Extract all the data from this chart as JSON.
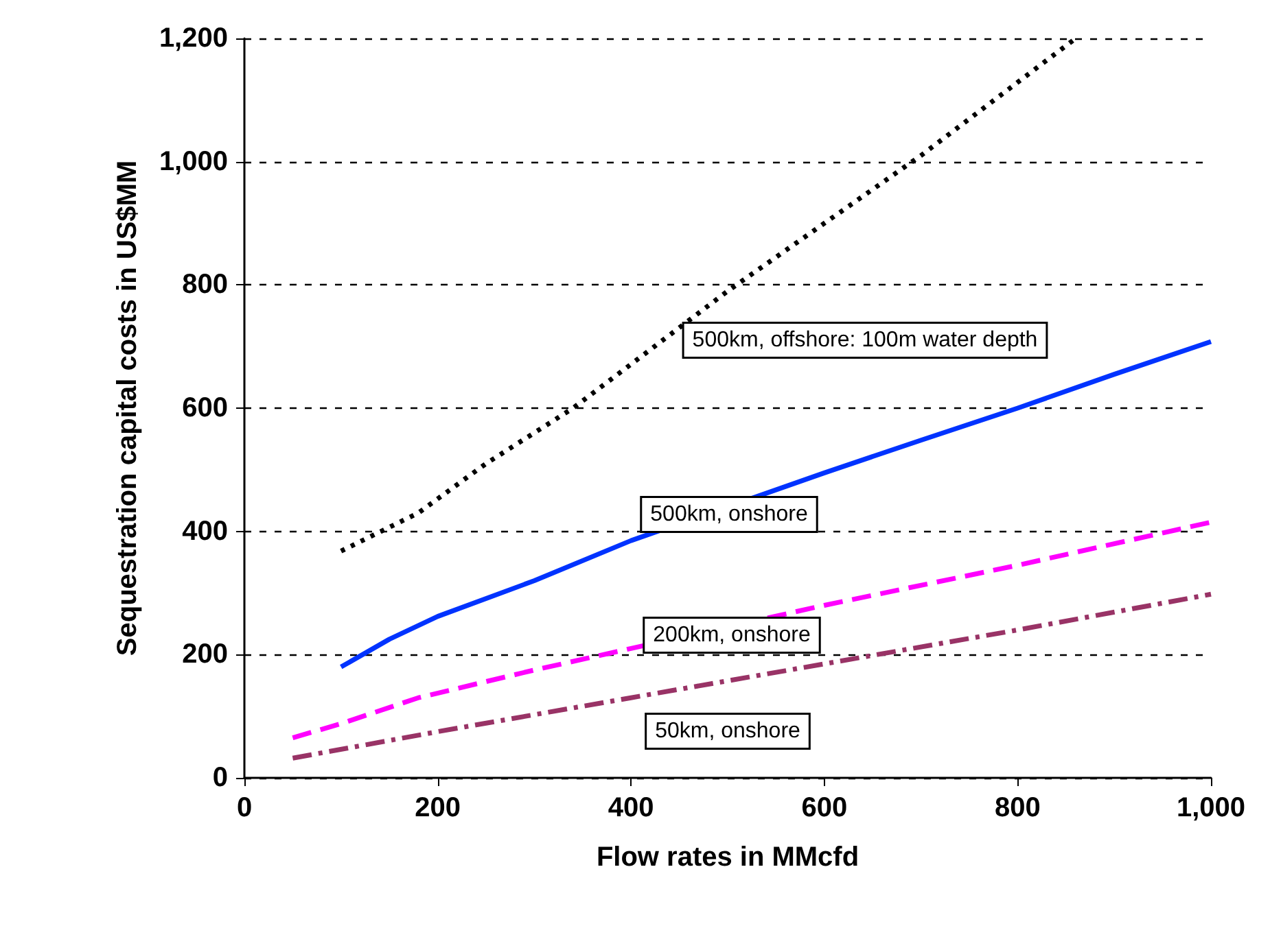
{
  "chart_data": {
    "type": "line",
    "xlabel": "Flow rates in MMcfd",
    "ylabel": "Sequestration capital costs in US$MM",
    "xlim": [
      0,
      1000
    ],
    "xticks": [
      0,
      200,
      400,
      600,
      800,
      {
        "value": 1000,
        "label": "1,000"
      }
    ],
    "ylim": [
      0,
      1200
    ],
    "yticks": [
      0,
      200,
      400,
      600,
      800,
      {
        "value": 1000,
        "label": "1,000"
      },
      {
        "value": 1200,
        "label": "1,200"
      }
    ],
    "grid": "y",
    "marker": "none",
    "series": [
      {
        "color": "#000000",
        "line_style": "dotted",
        "x": [
          100,
          180,
          250,
          340,
          500,
          700,
          860
        ],
        "values": [
          368,
          430,
          510,
          600,
          790,
          1010,
          1200
        ]
      },
      {
        "color": "#0033ff",
        "line_style": "solid",
        "x": [
          100,
          150,
          200,
          300,
          400,
          600,
          700,
          800,
          900,
          1000
        ],
        "values": [
          180,
          225,
          262,
          320,
          385,
          495,
          548,
          600,
          655,
          708
        ]
      },
      {
        "color": "#ff00ff",
        "line_style": "dashed",
        "x": [
          50,
          100,
          180,
          300,
          400,
          600,
          800,
          1000
        ],
        "values": [
          65,
          88,
          130,
          175,
          210,
          280,
          345,
          415
        ]
      },
      {
        "color": "#993366",
        "line_style": "dashdot",
        "x": [
          50,
          200,
          400,
          600,
          800,
          1000
        ],
        "values": [
          32,
          75,
          130,
          185,
          240,
          298
        ]
      }
    ],
    "annotations": [
      "500km, offshore: 100m water depth",
      "500km, onshore",
      "200km, onshore",
      "50km, onshore"
    ]
  }
}
